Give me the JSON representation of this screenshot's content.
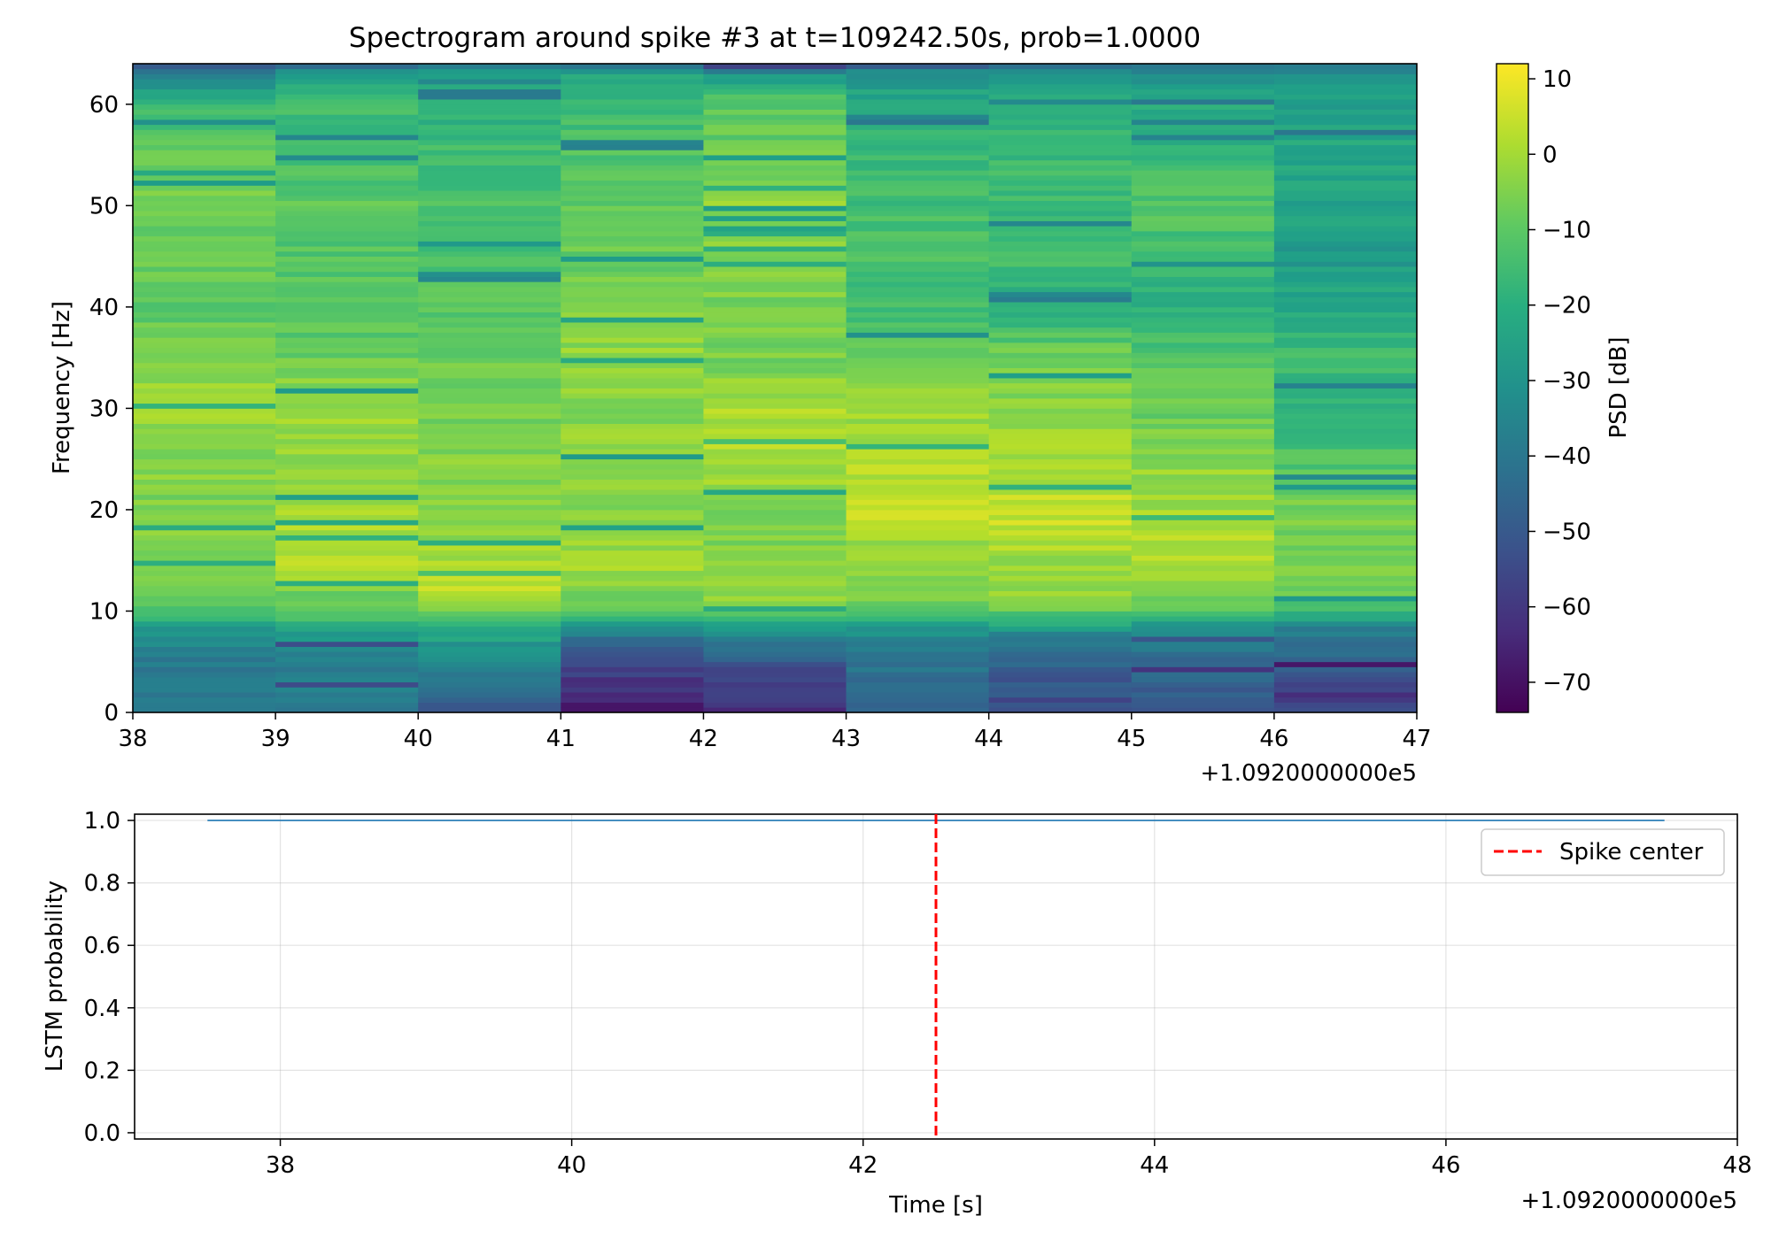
{
  "chart_data": [
    {
      "type": "heatmap",
      "title": "Spectrogram around spike #3 at t=109242.50s, prob=1.0000",
      "xlabel": "",
      "ylabel": "Frequency [Hz]",
      "x_offset_label": "+1.0920000000e5",
      "xlim": [
        38,
        47
      ],
      "ylim": [
        0,
        64
      ],
      "x_ticks": [
        "38",
        "39",
        "40",
        "41",
        "42",
        "43",
        "44",
        "45",
        "46",
        "47"
      ],
      "y_ticks": [
        "0",
        "10",
        "20",
        "30",
        "40",
        "50",
        "60"
      ],
      "time_bins": [
        38.5,
        39.5,
        40.5,
        41.5,
        42.5,
        43.5,
        44.5,
        45.5,
        46.5
      ],
      "colormap": "viridis",
      "colorbar": {
        "label": "PSD [dB]",
        "range": [
          -74,
          12
        ],
        "ticks": [
          "10",
          "0",
          "−10",
          "−20",
          "−30",
          "−40",
          "−50",
          "−60",
          "−70"
        ]
      },
      "psd_profile_db": {
        "frequency_hz": [
          0,
          2,
          4,
          6,
          8,
          10,
          12,
          15,
          20,
          25,
          30,
          35,
          40,
          45,
          50,
          55,
          60,
          63,
          64
        ],
        "columns": [
          [
            -40,
            -38,
            -40,
            -37,
            -30,
            -14,
            -8,
            -3,
            -5,
            -4,
            0,
            -5,
            -10,
            -9,
            -6,
            -10,
            -15,
            -40,
            -55
          ],
          [
            -38,
            -35,
            -38,
            -34,
            -26,
            -10,
            -6,
            3,
            -1,
            -2,
            0,
            -8,
            -12,
            -11,
            -10,
            -13,
            -16,
            -25,
            -45
          ],
          [
            -50,
            -46,
            -36,
            -32,
            -22,
            -6,
            5,
            0,
            -5,
            -4,
            -6,
            -8,
            -10,
            -14,
            -13,
            -14,
            -20,
            -22,
            -45
          ],
          [
            -70,
            -62,
            -58,
            -50,
            -36,
            -10,
            -4,
            0,
            -3,
            -2,
            -4,
            -2,
            -6,
            -8,
            -10,
            -12,
            -16,
            -20,
            -42
          ],
          [
            -62,
            -58,
            -56,
            -46,
            -32,
            -6,
            -1,
            -4,
            -6,
            2,
            1,
            -6,
            -6,
            -3,
            -2,
            -8,
            -10,
            -30,
            -65
          ],
          [
            -44,
            -44,
            -42,
            -40,
            -30,
            -10,
            -2,
            -3,
            5,
            2,
            -2,
            -8,
            -15,
            -12,
            -14,
            -16,
            -20,
            -30,
            -50
          ],
          [
            -55,
            -52,
            -50,
            -44,
            -32,
            -8,
            -2,
            -1,
            6,
            0,
            -4,
            -6,
            -20,
            -14,
            -16,
            -16,
            -20,
            -28,
            -50
          ],
          [
            -52,
            -48,
            -46,
            -42,
            -34,
            -9,
            -4,
            2,
            0,
            -3,
            -8,
            -10,
            -20,
            -16,
            -10,
            -18,
            -22,
            -30,
            -45
          ],
          [
            -55,
            -60,
            -52,
            -45,
            -38,
            -18,
            -6,
            -6,
            -6,
            -12,
            -20,
            -14,
            -22,
            -28,
            -24,
            -22,
            -26,
            -30,
            -40
          ]
        ]
      }
    },
    {
      "type": "line",
      "title": "",
      "xlabel": "Time [s]",
      "ylabel": "LSTM probability",
      "x_offset_label": "+1.0920000000e5",
      "xlim": [
        37,
        48
      ],
      "ylim": [
        -0.02,
        1.02
      ],
      "x_ticks": [
        "38",
        "40",
        "42",
        "44",
        "46",
        "48"
      ],
      "y_ticks": [
        "0.0",
        "0.2",
        "0.4",
        "0.6",
        "0.8",
        "1.0"
      ],
      "grid": true,
      "legend_position": "top-right",
      "series": [
        {
          "name": "",
          "color": "#1f77b4",
          "x": [
            37.5,
            47.5
          ],
          "y": [
            1.0,
            1.0
          ]
        }
      ],
      "vlines": [
        {
          "name": "Spike center",
          "x": 42.5,
          "color": "#ff0000",
          "style": "dashed"
        }
      ],
      "legend": [
        "Spike center"
      ]
    }
  ]
}
